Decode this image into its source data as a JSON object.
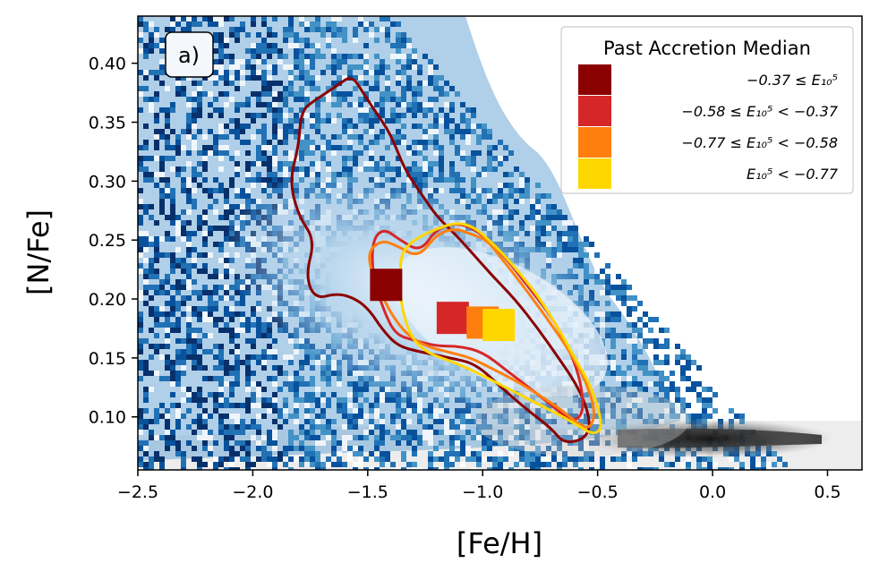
{
  "chart_data": {
    "type": "scatter",
    "panel_label": "a)",
    "xlabel": "[Fe/H]",
    "ylabel": "[N/Fe]",
    "xlim": [
      -2.5,
      0.65
    ],
    "ylim": [
      0.055,
      0.44
    ],
    "xticks": [
      -2.5,
      -2.0,
      -1.5,
      -1.0,
      -0.5,
      0.0,
      0.5
    ],
    "xtick_labels": [
      "−2.5",
      "−2.0",
      "−1.5",
      "−1.0",
      "−0.5",
      "0.0",
      "0.5"
    ],
    "yticks": [
      0.1,
      0.15,
      0.2,
      0.25,
      0.3,
      0.35,
      0.4
    ],
    "ytick_labels": [
      "0.10",
      "0.15",
      "0.20",
      "0.25",
      "0.30",
      "0.35",
      "0.40"
    ],
    "grid": false,
    "legend": {
      "title": "Past Accretion Median",
      "placement": "top-right",
      "entries": [
        {
          "label": "−0.37 ≤ E₁₀⁵",
          "color": "#8b0000"
        },
        {
          "label": "−0.58 ≤ E₁₀⁵ < −0.37",
          "color": "#d62728"
        },
        {
          "label": "−0.77 ≤ E₁₀⁵ < −0.58",
          "color": "#ff7f0e"
        },
        {
          "label": "E₁₀⁵ < −0.77",
          "color": "#ffd700"
        }
      ]
    },
    "series": [
      {
        "color": "#8b0000",
        "median": [
          -1.42,
          0.212
        ]
      },
      {
        "color": "#d62728",
        "median": [
          -1.13,
          0.184
        ]
      },
      {
        "color": "#ff7f0e",
        "median": [
          -1.0,
          0.18
        ]
      },
      {
        "color": "#ffd700",
        "median": [
          -0.93,
          0.178
        ]
      }
    ],
    "contours": [
      {
        "color": "#8b0000",
        "points": [
          [
            -1.79,
            0.36
          ],
          [
            -1.72,
            0.37
          ],
          [
            -1.64,
            0.38
          ],
          [
            -1.57,
            0.39
          ],
          [
            -1.52,
            0.375
          ],
          [
            -1.47,
            0.36
          ],
          [
            -1.4,
            0.34
          ],
          [
            -1.34,
            0.31
          ],
          [
            -1.27,
            0.29
          ],
          [
            -1.2,
            0.27
          ],
          [
            -1.12,
            0.255
          ],
          [
            -1.05,
            0.24
          ],
          [
            -0.96,
            0.22
          ],
          [
            -0.86,
            0.2
          ],
          [
            -0.76,
            0.175
          ],
          [
            -0.67,
            0.15
          ],
          [
            -0.6,
            0.13
          ],
          [
            -0.55,
            0.11
          ],
          [
            -0.53,
            0.09
          ],
          [
            -0.57,
            0.08
          ],
          [
            -0.65,
            0.078
          ],
          [
            -0.7,
            0.09
          ],
          [
            -0.8,
            0.105
          ],
          [
            -0.92,
            0.125
          ],
          [
            -1.03,
            0.145
          ],
          [
            -1.14,
            0.15
          ],
          [
            -1.27,
            0.155
          ],
          [
            -1.37,
            0.16
          ],
          [
            -1.44,
            0.175
          ],
          [
            -1.49,
            0.19
          ],
          [
            -1.55,
            0.2
          ],
          [
            -1.63,
            0.205
          ],
          [
            -1.73,
            0.2
          ],
          [
            -1.77,
            0.22
          ],
          [
            -1.73,
            0.25
          ],
          [
            -1.8,
            0.27
          ],
          [
            -1.84,
            0.3
          ],
          [
            -1.8,
            0.33
          ]
        ]
      },
      {
        "color": "#d62728",
        "points": [
          [
            -1.48,
            0.25
          ],
          [
            -1.43,
            0.26
          ],
          [
            -1.36,
            0.25
          ],
          [
            -1.27,
            0.24
          ],
          [
            -1.2,
            0.26
          ],
          [
            -1.1,
            0.265
          ],
          [
            -1.0,
            0.255
          ],
          [
            -0.9,
            0.235
          ],
          [
            -0.8,
            0.21
          ],
          [
            -0.7,
            0.185
          ],
          [
            -0.63,
            0.16
          ],
          [
            -0.58,
            0.135
          ],
          [
            -0.56,
            0.11
          ],
          [
            -0.58,
            0.098
          ],
          [
            -0.63,
            0.098
          ],
          [
            -0.7,
            0.11
          ],
          [
            -0.8,
            0.125
          ],
          [
            -0.9,
            0.14
          ],
          [
            -1.0,
            0.155
          ],
          [
            -1.1,
            0.16
          ],
          [
            -1.2,
            0.16
          ],
          [
            -1.3,
            0.165
          ],
          [
            -1.38,
            0.17
          ],
          [
            -1.43,
            0.19
          ],
          [
            -1.48,
            0.22
          ]
        ]
      },
      {
        "color": "#ff7f0e",
        "points": [
          [
            -1.5,
            0.24
          ],
          [
            -1.44,
            0.25
          ],
          [
            -1.37,
            0.245
          ],
          [
            -1.28,
            0.235
          ],
          [
            -1.2,
            0.255
          ],
          [
            -1.12,
            0.26
          ],
          [
            -1.05,
            0.255
          ],
          [
            -0.98,
            0.25
          ],
          [
            -0.9,
            0.23
          ],
          [
            -0.8,
            0.205
          ],
          [
            -0.7,
            0.178
          ],
          [
            -0.62,
            0.155
          ],
          [
            -0.55,
            0.13
          ],
          [
            -0.51,
            0.105
          ],
          [
            -0.53,
            0.09
          ],
          [
            -0.58,
            0.093
          ],
          [
            -0.65,
            0.105
          ],
          [
            -0.75,
            0.118
          ],
          [
            -0.85,
            0.13
          ],
          [
            -0.95,
            0.14
          ],
          [
            -1.05,
            0.15
          ],
          [
            -1.15,
            0.155
          ],
          [
            -1.25,
            0.16
          ],
          [
            -1.33,
            0.17
          ],
          [
            -1.39,
            0.185
          ],
          [
            -1.43,
            0.2
          ],
          [
            -1.48,
            0.22
          ]
        ]
      },
      {
        "color": "#ffd700",
        "points": [
          [
            -1.35,
            0.24
          ],
          [
            -1.3,
            0.25
          ],
          [
            -1.22,
            0.258
          ],
          [
            -1.12,
            0.265
          ],
          [
            -1.05,
            0.262
          ],
          [
            -1.0,
            0.255
          ],
          [
            -0.92,
            0.24
          ],
          [
            -0.83,
            0.22
          ],
          [
            -0.75,
            0.2
          ],
          [
            -0.67,
            0.175
          ],
          [
            -0.6,
            0.15
          ],
          [
            -0.54,
            0.13
          ],
          [
            -0.5,
            0.11
          ],
          [
            -0.48,
            0.09
          ],
          [
            -0.52,
            0.085
          ],
          [
            -0.58,
            0.092
          ],
          [
            -0.65,
            0.1
          ],
          [
            -0.75,
            0.11
          ],
          [
            -0.85,
            0.12
          ],
          [
            -0.95,
            0.13
          ],
          [
            -1.05,
            0.14
          ],
          [
            -1.15,
            0.148
          ],
          [
            -1.25,
            0.155
          ],
          [
            -1.32,
            0.17
          ],
          [
            -1.36,
            0.2
          ],
          [
            -1.36,
            0.225
          ]
        ]
      }
    ]
  }
}
